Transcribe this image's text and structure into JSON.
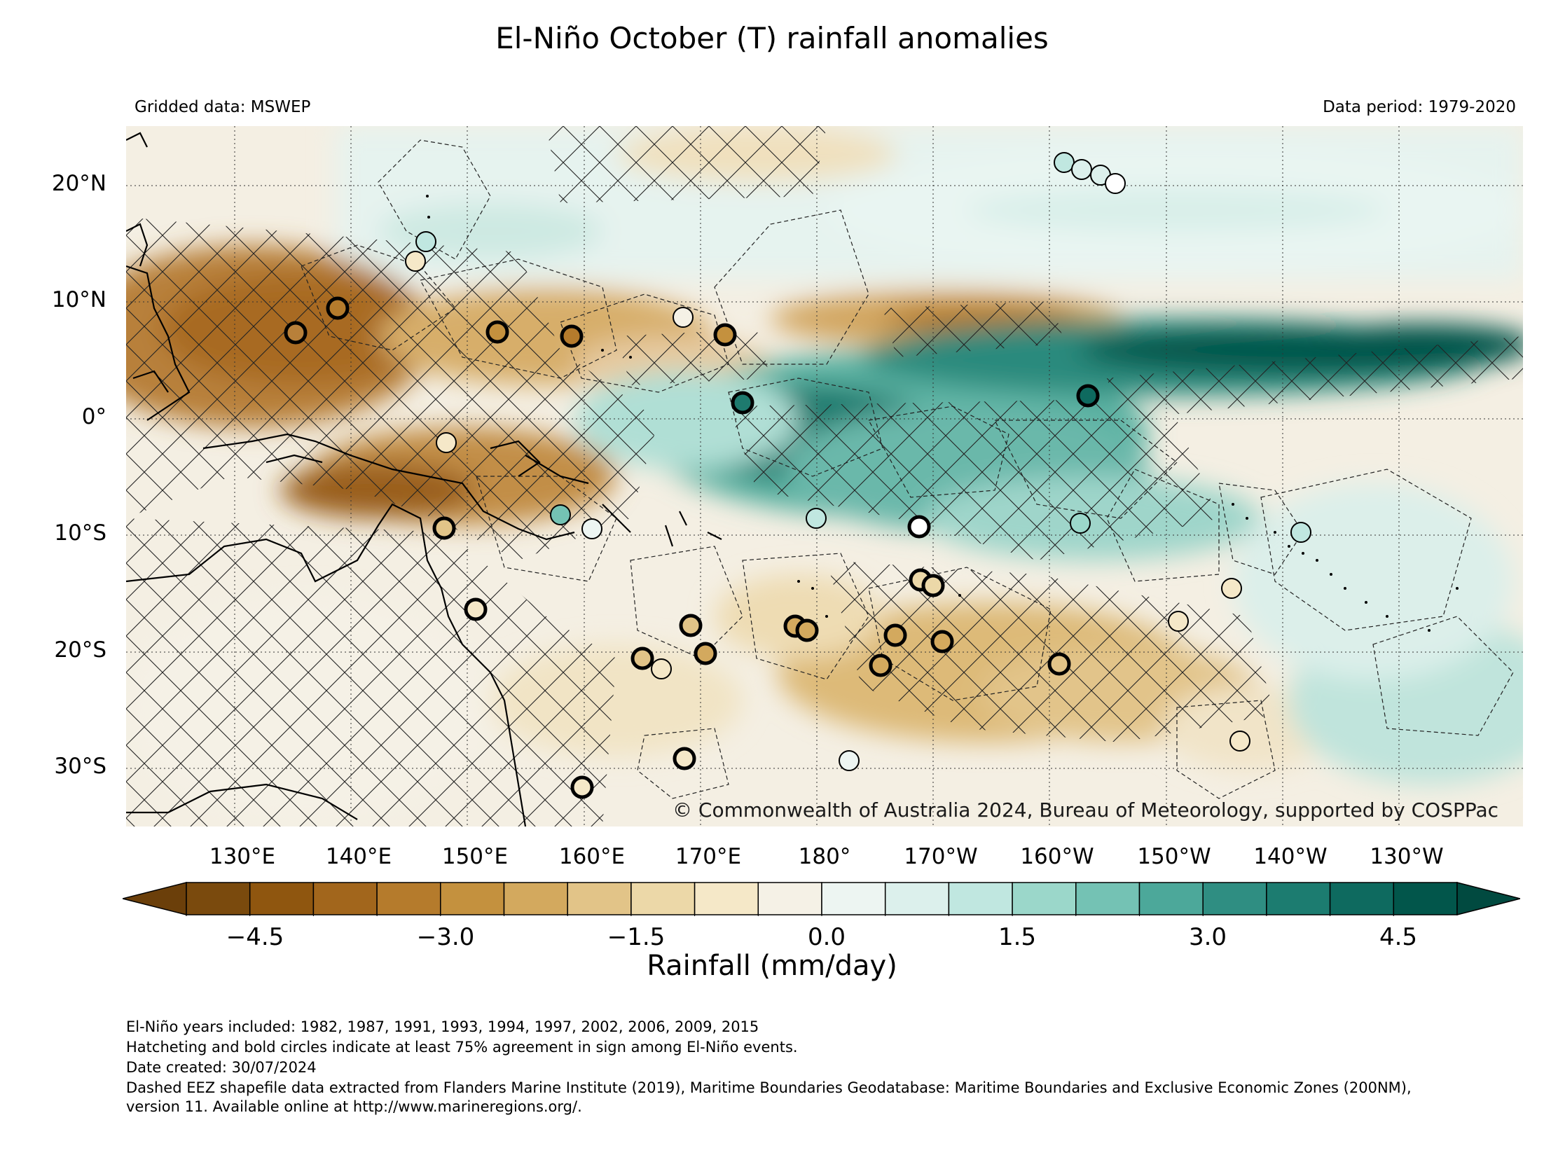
{
  "title": "El-Niño October (T) rainfall anomalies",
  "subtitle_left": "Gridded data: MSWEP",
  "subtitle_right": "Data period: 1979-2020",
  "lat_labels": [
    "20°N",
    "10°N",
    "0°",
    "10°S",
    "20°S",
    "30°S"
  ],
  "lon_labels": [
    "130°E",
    "140°E",
    "150°E",
    "160°E",
    "170°E",
    "180°",
    "170°W",
    "160°W",
    "150°W",
    "140°W",
    "130°W"
  ],
  "copyright": "© Commonwealth of Australia 2024, Bureau of Meteorology, supported by COSPPac",
  "colorbar": {
    "ticks": [
      "−4.5",
      "−3.0",
      "−1.5",
      "0.0",
      "1.5",
      "3.0",
      "4.5"
    ],
    "label": "Rainfall (mm/day)",
    "colors": [
      "#7a4a0d",
      "#8f560f",
      "#a2661c",
      "#b57b2c",
      "#c4913e",
      "#d3a95e",
      "#e2c488",
      "#ecd8a8",
      "#f5e8c8",
      "#f5f1e6",
      "#edf5f2",
      "#dcf0ec",
      "#c0e7e0",
      "#9bd7ca",
      "#74c2b4",
      "#4ca89a",
      "#2f8e82",
      "#1c7c70",
      "#0e6a5f",
      "#02564b"
    ],
    "low_extend_color": "#6b3f0a",
    "high_extend_color": "#014a40"
  },
  "footer": [
    "El-Niño years included: 1982, 1987, 1991, 1993, 1994, 1997, 2002, 2006, 2009, 2015",
    "Hatcheting and bold circles indicate at least 75% agreement in sign among El-Niño events.",
    "Date created: 30/07/2024",
    "Dashed EEZ shapefile data extracted from Flanders Marine Institute (2019), Maritime Boundaries Geodatabase: Maritime Boundaries and Exclusive Economic Zones (200NM),",
    "version 11. Available online at http://www.marineregions.org/."
  ]
}
